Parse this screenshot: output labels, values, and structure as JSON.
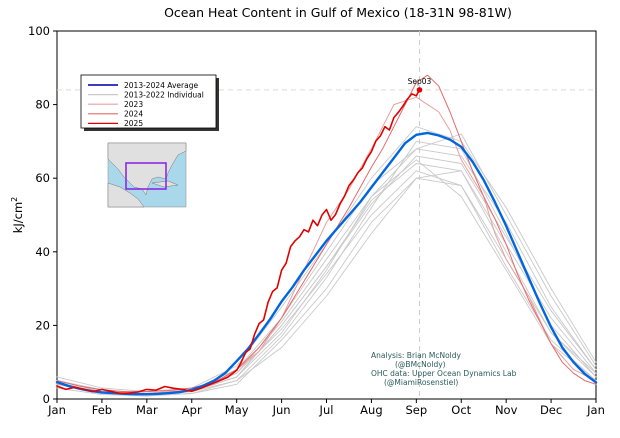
{
  "chart_data": {
    "type": "line",
    "title": "Ocean Heat Content in Gulf of Mexico (18-31N 98-81W)",
    "ylabel_main": "kJ/cm",
    "ylabel_sup": "2",
    "xlabel": "",
    "ylim": [
      0,
      100
    ],
    "xlim": [
      0,
      12
    ],
    "grid": false,
    "y_ticks": [
      0,
      20,
      40,
      60,
      80,
      100
    ],
    "x_ticks": [
      {
        "x": 0,
        "label": "Jan"
      },
      {
        "x": 1,
        "label": "Feb"
      },
      {
        "x": 2,
        "label": "Mar"
      },
      {
        "x": 3,
        "label": "Apr"
      },
      {
        "x": 4,
        "label": "May"
      },
      {
        "x": 5,
        "label": "Jun"
      },
      {
        "x": 6,
        "label": "Jul"
      },
      {
        "x": 7,
        "label": "Aug"
      },
      {
        "x": 8,
        "label": "Sep"
      },
      {
        "x": 9,
        "label": "Oct"
      },
      {
        "x": 10,
        "label": "Nov"
      },
      {
        "x": 11,
        "label": "Dec"
      },
      {
        "x": 12,
        "label": "Jan"
      }
    ],
    "legend_placement": "upper-left",
    "legend": [
      {
        "label": "2013-2024 Average",
        "color": "#1f1fb4"
      },
      {
        "label": "2013-2022 Individual",
        "color": "#c9c9c9"
      },
      {
        "label": "2023",
        "color": "#e8a0a0"
      },
      {
        "label": "2024",
        "color": "#e56a6a"
      },
      {
        "label": "2025",
        "color": "#e00000"
      }
    ],
    "annotation": {
      "label": "Sep03",
      "x": 8.07,
      "y": 84,
      "color": "#e00000"
    },
    "credits": [
      "Analysis: Brian McNoldy",
      "(@BMcNoldy)",
      "OHC data: Upper Ocean Dynamics Lab",
      "(@MiamiRosenstiel)"
    ],
    "colors": {
      "average": "#0066e0",
      "individual": "#c9c9c9",
      "y2023": "#e8a0a0",
      "y2024": "#e56a6a",
      "y2025": "#e00000",
      "crosshair": "#cccccc",
      "credit_text": "#2b5b5b"
    },
    "series": [
      {
        "name": "2013-2024 Average",
        "role": "average",
        "x": [
          0,
          0.25,
          0.5,
          0.75,
          1,
          1.25,
          1.5,
          1.75,
          2,
          2.25,
          2.5,
          2.75,
          3,
          3.25,
          3.5,
          3.75,
          4,
          4.25,
          4.5,
          4.75,
          5,
          5.25,
          5.5,
          5.75,
          6,
          6.25,
          6.5,
          6.75,
          7,
          7.25,
          7.5,
          7.75,
          8,
          8.25,
          8.5,
          8.75,
          9,
          9.25,
          9.5,
          9.75,
          10,
          10.25,
          10.5,
          10.75,
          11,
          11.25,
          11.5,
          11.75,
          12
        ],
        "y": [
          4.6,
          3.6,
          2.8,
          2.2,
          1.8,
          1.6,
          1.4,
          1.3,
          1.3,
          1.4,
          1.6,
          1.9,
          2.5,
          3.6,
          5.0,
          7.1,
          10.3,
          13.6,
          17.6,
          21.8,
          26.5,
          30.5,
          35,
          39,
          43,
          46.5,
          50,
          53.5,
          57.5,
          61.5,
          65.5,
          69.5,
          71.8,
          72.3,
          71.6,
          70.5,
          68.5,
          64.5,
          59.5,
          53.5,
          47,
          40,
          33,
          26,
          19.5,
          14,
          10,
          6.8,
          4.5
        ]
      },
      {
        "name": "2025",
        "role": "y2025",
        "x": [
          0,
          0.2,
          0.4,
          0.6,
          0.8,
          1,
          1.2,
          1.4,
          1.6,
          1.8,
          2,
          2.2,
          2.4,
          2.6,
          2.8,
          3,
          3.2,
          3.4,
          3.6,
          3.8,
          4,
          4.1,
          4.2,
          4.3,
          4.4,
          4.5,
          4.6,
          4.7,
          4.8,
          4.9,
          5,
          5.1,
          5.2,
          5.3,
          5.4,
          5.5,
          5.6,
          5.7,
          5.8,
          5.9,
          6,
          6.1,
          6.2,
          6.3,
          6.4,
          6.5,
          6.6,
          6.7,
          6.8,
          6.9,
          7,
          7.1,
          7.2,
          7.3,
          7.4,
          7.5,
          7.6,
          7.7,
          7.8,
          7.9,
          8,
          8.07
        ],
        "y": [
          3.5,
          2.6,
          3.2,
          2.6,
          2.0,
          2.6,
          2.1,
          1.5,
          1.6,
          1.9,
          2.6,
          2.4,
          3.4,
          2.9,
          2.6,
          2.1,
          2.9,
          3.9,
          4.9,
          5.9,
          7.8,
          10,
          12.7,
          13.6,
          17.6,
          20.5,
          21.5,
          26.3,
          29.2,
          30.2,
          35,
          36.9,
          41.4,
          43,
          44.1,
          46,
          45.4,
          48.6,
          47.1,
          50,
          51.5,
          48.6,
          50.1,
          53,
          55.1,
          58,
          59.5,
          61.5,
          62.8,
          65.3,
          67.2,
          70.1,
          71.5,
          74,
          73.1,
          76.5,
          77.9,
          79.6,
          81.5,
          82.9,
          82.4,
          84.0
        ]
      },
      {
        "name": "2024",
        "role": "y2024",
        "x": [
          0,
          0.5,
          1,
          1.5,
          2,
          2.5,
          3,
          3.5,
          4,
          4.5,
          5,
          5.5,
          6,
          6.5,
          7,
          7.25,
          7.5,
          7.75,
          8,
          8.25,
          8.5,
          8.75,
          9,
          9.25,
          9.5,
          9.75,
          10,
          10.25,
          10.5,
          10.75,
          11,
          11.25,
          11.5,
          11.75,
          12
        ],
        "y": [
          5,
          3.5,
          2.5,
          2,
          2,
          2.3,
          3,
          4.5,
          8,
          14,
          22,
          32,
          42,
          52,
          63,
          68,
          74,
          80,
          86,
          88,
          85,
          78,
          70,
          62,
          55,
          49,
          42,
          34,
          27,
          21,
          15,
          10,
          7,
          5,
          4
        ]
      },
      {
        "name": "2023",
        "role": "y2023",
        "x": [
          0,
          0.5,
          1,
          1.5,
          2,
          2.5,
          3,
          3.5,
          4,
          4.5,
          5,
          5.5,
          6,
          6.5,
          7,
          7.5,
          8,
          8.25,
          8.5,
          8.75,
          9,
          9.25,
          9.5,
          9.75,
          10,
          10.5,
          11,
          11.5,
          12
        ],
        "y": [
          4,
          3,
          2,
          1.8,
          1.5,
          2,
          2.5,
          4,
          8,
          13,
          22,
          35,
          48,
          57,
          68,
          80,
          82,
          80,
          78,
          73,
          65,
          60,
          55,
          45,
          38,
          28,
          15,
          8,
          5
        ]
      },
      {
        "name": "2013",
        "role": "individual",
        "x": [
          0,
          1,
          2,
          3,
          4,
          5,
          6,
          7,
          8,
          9,
          10,
          11,
          12
        ],
        "y": [
          5,
          2,
          1.5,
          2,
          6,
          20,
          36,
          54,
          64,
          62,
          40,
          18,
          7
        ]
      },
      {
        "name": "2014",
        "role": "individual",
        "x": [
          0,
          1,
          2,
          3,
          4,
          5,
          6,
          7,
          8,
          9,
          10,
          11,
          12
        ],
        "y": [
          4,
          1.5,
          1,
          1.5,
          5,
          17,
          33,
          52,
          70,
          68,
          45,
          20,
          6
        ]
      },
      {
        "name": "2015",
        "role": "individual",
        "x": [
          0,
          1,
          2,
          3,
          4,
          5,
          6,
          7,
          8,
          9,
          10,
          11,
          12
        ],
        "y": [
          6,
          3,
          2,
          3,
          9,
          25,
          42,
          60,
          74,
          70,
          52,
          30,
          10
        ]
      },
      {
        "name": "2016",
        "role": "individual",
        "x": [
          0,
          1,
          2,
          3,
          4,
          5,
          6,
          7,
          8,
          9,
          10,
          11,
          12
        ],
        "y": [
          5,
          2.5,
          1.5,
          2.5,
          8,
          22,
          40,
          58,
          68,
          66,
          48,
          25,
          8
        ]
      },
      {
        "name": "2017",
        "role": "individual",
        "x": [
          0,
          1,
          2,
          3,
          4,
          5,
          6,
          7,
          8,
          9,
          10,
          11,
          12
        ],
        "y": [
          4,
          2,
          1.2,
          2,
          7,
          21,
          38,
          55,
          65,
          55,
          35,
          15,
          5
        ]
      },
      {
        "name": "2018",
        "role": "individual",
        "x": [
          0,
          1,
          2,
          3,
          4,
          5,
          6,
          7,
          8,
          9,
          10,
          11,
          12
        ],
        "y": [
          3,
          1.2,
          0.8,
          1.5,
          4,
          16,
          30,
          48,
          60,
          62,
          42,
          22,
          7
        ]
      },
      {
        "name": "2019",
        "role": "individual",
        "x": [
          0,
          1,
          2,
          3,
          4,
          5,
          6,
          7,
          8,
          9,
          10,
          11,
          12
        ],
        "y": [
          5,
          2.5,
          1.5,
          2.2,
          6,
          20,
          36,
          53,
          66,
          64,
          44,
          24,
          8
        ]
      },
      {
        "name": "2020",
        "role": "individual",
        "x": [
          0,
          1,
          2,
          3,
          4,
          5,
          6,
          7,
          8,
          9,
          10,
          11,
          12
        ],
        "y": [
          4,
          1.8,
          1.2,
          2,
          6,
          18,
          35,
          55,
          68,
          72,
          50,
          28,
          9
        ]
      },
      {
        "name": "2021",
        "role": "individual",
        "x": [
          0,
          1,
          2,
          3,
          4,
          5,
          6,
          7,
          8,
          9,
          10,
          11,
          12
        ],
        "y": [
          5,
          2,
          1.5,
          2.5,
          7,
          19,
          34,
          50,
          62,
          58,
          38,
          18,
          6
        ]
      },
      {
        "name": "2022",
        "role": "individual",
        "x": [
          0,
          1,
          2,
          3,
          4,
          5,
          6,
          7,
          8,
          9,
          10,
          11,
          12
        ],
        "y": [
          4,
          1.5,
          1,
          2,
          5,
          14,
          28,
          45,
          60,
          58,
          36,
          16,
          5
        ]
      }
    ]
  }
}
